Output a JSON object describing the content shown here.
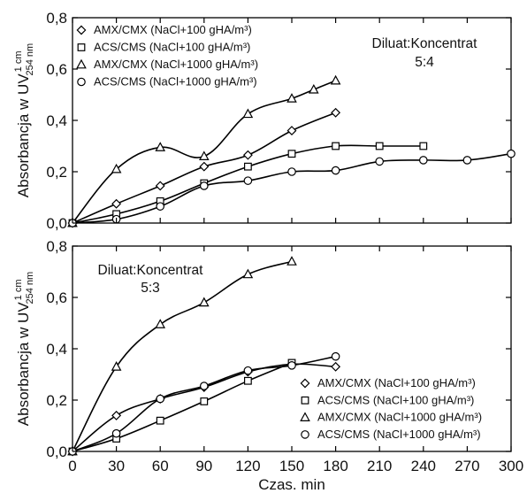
{
  "chart_data": [
    {
      "type": "line",
      "xlabel": "",
      "ylabel": "Absorbancja w UV",
      "ylabel_sub": "254 nm",
      "ylabel_sup": "1 cm",
      "xlim": [
        0,
        300
      ],
      "ylim": [
        0,
        0.8
      ],
      "x_ticks": [
        0,
        30,
        60,
        90,
        120,
        150,
        180,
        210,
        240,
        270,
        300
      ],
      "y_ticks": [
        0.0,
        0.2,
        0.4,
        0.6,
        0.8
      ],
      "y_tick_labels": [
        "0,0",
        "0,2",
        "0,4",
        "0,6",
        "0,8"
      ],
      "annotation": [
        "Diluat:Koncentrat",
        "5:4"
      ],
      "grid": false,
      "legend_placement": "top-left",
      "series": [
        {
          "name": "AMX/CMX (NaCl+100 gHA/m³)",
          "marker": "diamond",
          "x": [
            0,
            30,
            60,
            90,
            120,
            150,
            180
          ],
          "y": [
            0.0,
            0.075,
            0.145,
            0.22,
            0.265,
            0.36,
            0.43
          ]
        },
        {
          "name": "ACS/CMS (NaCl+100 gHA/m³)",
          "marker": "square",
          "x": [
            0,
            30,
            60,
            90,
            120,
            150,
            180,
            210,
            240
          ],
          "y": [
            0.0,
            0.035,
            0.085,
            0.155,
            0.22,
            0.27,
            0.3,
            0.3,
            0.3
          ]
        },
        {
          "name": "AMX/CMX (NaCl+1000 gHA/m³)",
          "marker": "triangle",
          "x": [
            0,
            30,
            60,
            90,
            120,
            150,
            165,
            180
          ],
          "y": [
            0.0,
            0.21,
            0.295,
            0.26,
            0.425,
            0.485,
            0.52,
            0.555
          ]
        },
        {
          "name": "ACS/CMS (NaCl+1000 gHA/m³)",
          "marker": "circle",
          "x": [
            0,
            30,
            60,
            90,
            120,
            150,
            180,
            210,
            240,
            270,
            300
          ],
          "y": [
            0.0,
            0.015,
            0.065,
            0.145,
            0.165,
            0.2,
            0.205,
            0.24,
            0.245,
            0.245,
            0.27
          ]
        }
      ]
    },
    {
      "type": "line",
      "xlabel": "Czas. min",
      "ylabel": "Absorbancja w UV",
      "ylabel_sub": "254 nm",
      "ylabel_sup": "1 cm",
      "xlim": [
        0,
        300
      ],
      "ylim": [
        0,
        0.8
      ],
      "x_ticks": [
        0,
        30,
        60,
        90,
        120,
        150,
        180,
        210,
        240,
        270,
        300
      ],
      "x_tick_labels": [
        "0",
        "30",
        "60",
        "90",
        "120",
        "150",
        "180",
        "210",
        "240",
        "270",
        "300"
      ],
      "y_ticks": [
        0.0,
        0.2,
        0.4,
        0.6,
        0.8
      ],
      "y_tick_labels": [
        "0,0",
        "0,2",
        "0,4",
        "0,6",
        "0,8"
      ],
      "annotation": [
        "Diluat:Koncentrat",
        "5:3"
      ],
      "grid": false,
      "legend_placement": "bottom-right",
      "series": [
        {
          "name": "AMX/CMX (NaCl+100 gHA/m³)",
          "marker": "diamond",
          "x": [
            0,
            30,
            60,
            90,
            120,
            150,
            180
          ],
          "y": [
            0.0,
            0.14,
            0.205,
            0.25,
            0.31,
            0.34,
            0.33
          ]
        },
        {
          "name": "ACS/CMS (NaCl+100 gHA/m³)",
          "marker": "square",
          "x": [
            0,
            30,
            60,
            90,
            120,
            150
          ],
          "y": [
            0.0,
            0.05,
            0.12,
            0.195,
            0.275,
            0.345
          ]
        },
        {
          "name": "AMX/CMX (NaCl+1000 gHA/m³)",
          "marker": "triangle",
          "x": [
            0,
            30,
            60,
            90,
            120,
            150
          ],
          "y": [
            0.0,
            0.33,
            0.495,
            0.58,
            0.69,
            0.74
          ]
        },
        {
          "name": "ACS/CMS (NaCl+1000 gHA/m³)",
          "marker": "circle",
          "x": [
            0,
            30,
            60,
            90,
            120,
            150,
            180
          ],
          "y": [
            0.0,
            0.07,
            0.205,
            0.255,
            0.315,
            0.335,
            0.37
          ]
        }
      ]
    }
  ]
}
